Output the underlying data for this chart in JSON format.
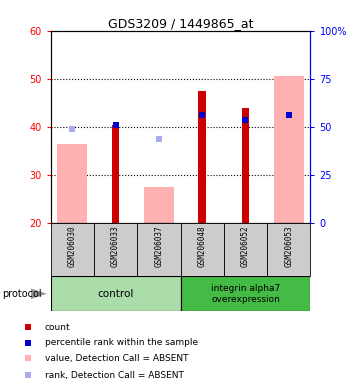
{
  "title": "GDS3209 / 1449865_at",
  "samples": [
    "GSM206030",
    "GSM206033",
    "GSM206037",
    "GSM206048",
    "GSM206052",
    "GSM206053"
  ],
  "ylim_left": [
    20,
    60
  ],
  "ylim_right": [
    0,
    100
  ],
  "yticks_left": [
    20,
    30,
    40,
    50,
    60
  ],
  "yticks_right": [
    0,
    25,
    50,
    75,
    100
  ],
  "ytick_right_labels": [
    "0",
    "25",
    "50",
    "75",
    "100%"
  ],
  "red_bars": [
    null,
    40.3,
    null,
    47.5,
    44.0,
    null
  ],
  "pink_bars": [
    36.5,
    null,
    27.5,
    null,
    null,
    50.5
  ],
  "blue_squares": [
    null,
    40.3,
    null,
    42.5,
    41.5,
    42.5
  ],
  "lightblue_squares": [
    39.5,
    null,
    37.5,
    null,
    null,
    null
  ],
  "red_color": "#CC0000",
  "pink_color": "#FFB0B0",
  "blue_color": "#0000CC",
  "lightblue_color": "#AAAAEE",
  "ctrl_color": "#AADDAA",
  "integ_color": "#44BB44",
  "gray_color": "#CCCCCC",
  "background_color": "#FFFFFF"
}
